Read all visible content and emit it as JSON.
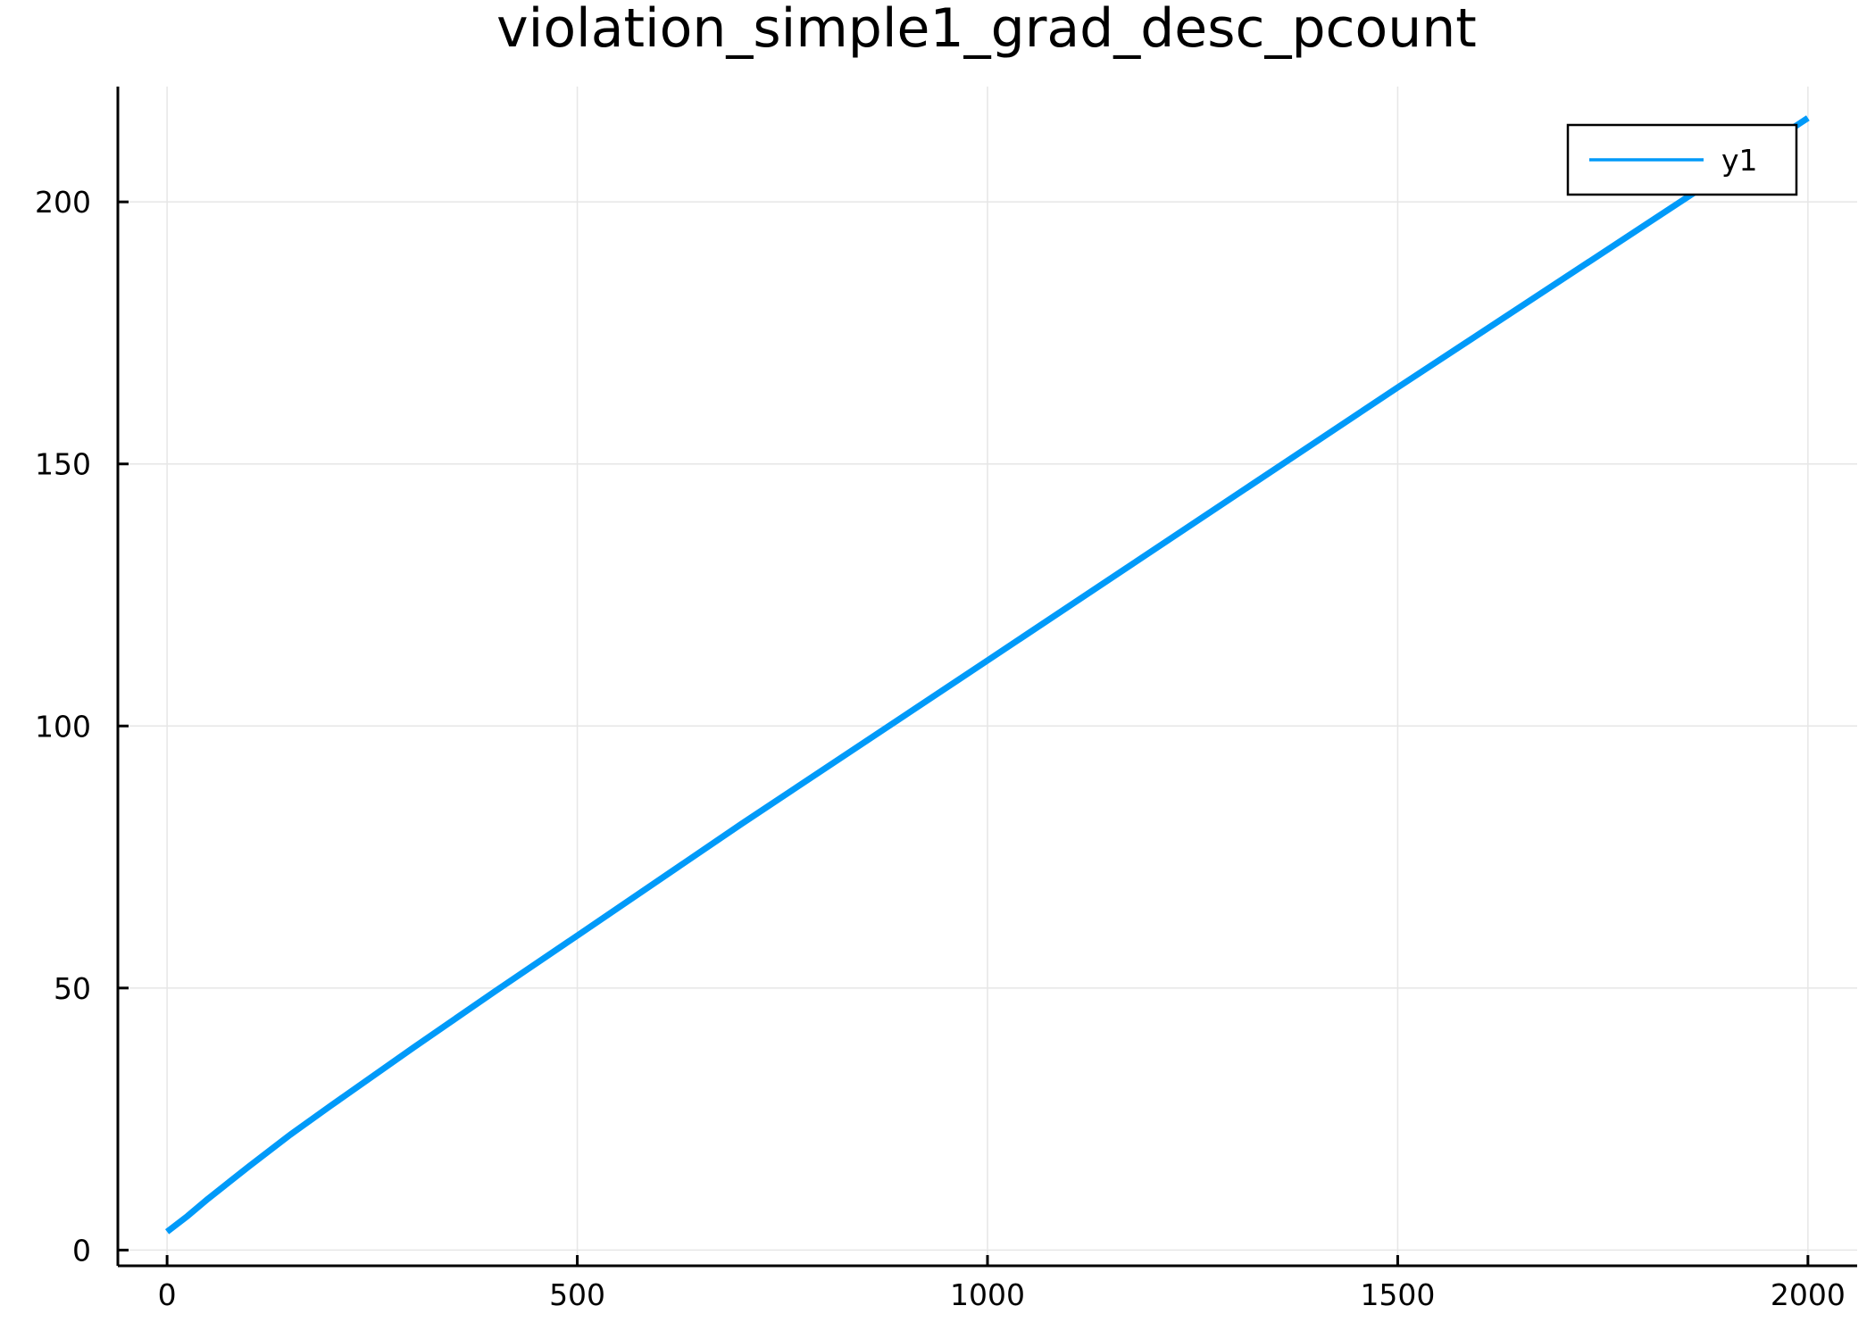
{
  "chart_data": {
    "type": "line",
    "title": "violation_simple1_grad_desc_pcount",
    "xlabel": "",
    "ylabel": "",
    "xlim": [
      -60,
      2060
    ],
    "ylim": [
      -3,
      222
    ],
    "x_ticks": [
      0,
      500,
      1000,
      1500,
      2000
    ],
    "x_tick_labels": [
      "0",
      "500",
      "1000",
      "1500",
      "2000"
    ],
    "y_ticks": [
      0,
      50,
      100,
      150,
      200
    ],
    "y_tick_labels": [
      "0",
      "50",
      "100",
      "150",
      "200"
    ],
    "grid": true,
    "legend": {
      "position": "top-right",
      "entries": [
        "y1"
      ]
    },
    "series": [
      {
        "name": "y1",
        "color": "#009af9",
        "x": [
          0,
          25,
          50,
          100,
          150,
          200,
          300,
          400,
          500,
          700,
          1000,
          1500,
          2000
        ],
        "y": [
          3.5,
          6.5,
          9.8,
          16.0,
          22.0,
          27.6,
          38.6,
          49.4,
          60.0,
          81.3,
          112.5,
          164.6,
          216.0
        ]
      }
    ]
  }
}
